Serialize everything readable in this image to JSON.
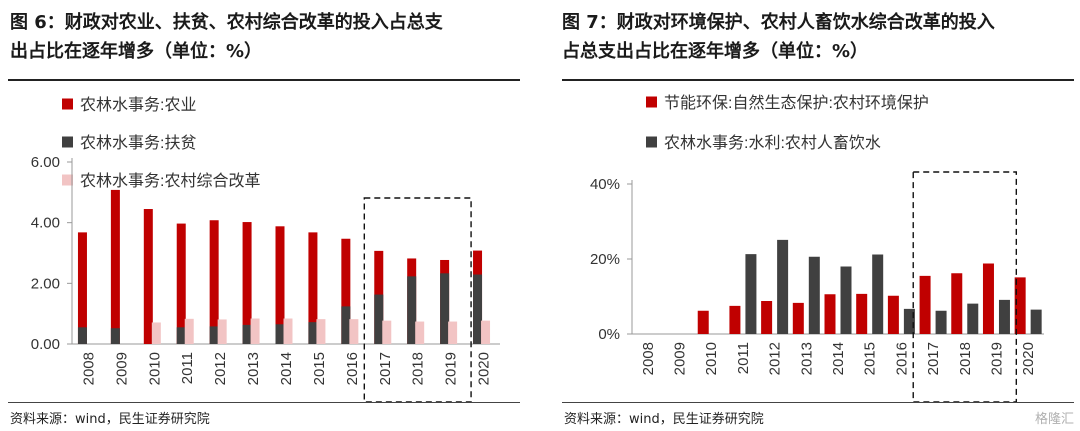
{
  "left": {
    "title_line1": "图 6：财政对农业、扶贫、农村综合改革的投入占总支",
    "title_line2": "出占比在逐年增多（单位：%）",
    "source": "资料来源：wind，民生证券研究院"
  },
  "right": {
    "title_line1": "图 7：财政对环境保护、农村人畜饮水综合改革的投入",
    "title_line2": "占总支出占比在逐年增多（单位：%）",
    "source": "资料来源：wind，民生证券研究院",
    "watermark": "格隆汇"
  },
  "chart_data": [
    {
      "type": "bar",
      "title": "",
      "categories": [
        "2008",
        "2009",
        "2010",
        "2011",
        "2012",
        "2013",
        "2014",
        "2015",
        "2016",
        "2017",
        "2018",
        "2019",
        "2020"
      ],
      "ylim": [
        0,
        6
      ],
      "yticks": [
        "0.00",
        "2.00",
        "4.00",
        "6.00"
      ],
      "grid": false,
      "legend_position": "top-left",
      "highlight_box": [
        "2017",
        "2019"
      ],
      "series": [
        {
          "name": "农林水事务:农业",
          "color": "#c00000",
          "values": [
            3.68,
            5.08,
            4.45,
            3.97,
            4.08,
            4.02,
            3.88,
            3.68,
            3.47,
            3.07,
            2.82,
            2.77,
            3.08
          ]
        },
        {
          "name": "农林水事务:扶贫",
          "color": "#404040",
          "values": [
            0.55,
            0.52,
            null,
            0.55,
            0.58,
            0.63,
            0.65,
            0.72,
            1.24,
            1.63,
            2.23,
            2.33,
            2.29
          ]
        },
        {
          "name": "农林水事务:农村综合改革",
          "color": "#f2c4c4",
          "values": [
            null,
            null,
            0.71,
            0.83,
            0.81,
            0.84,
            0.84,
            0.82,
            0.82,
            0.77,
            0.74,
            0.74,
            0.77
          ]
        }
      ]
    },
    {
      "type": "bar",
      "title": "",
      "categories": [
        "2008",
        "2009",
        "2010",
        "2011",
        "2012",
        "2013",
        "2014",
        "2015",
        "2016",
        "2017",
        "2018",
        "2019",
        "2020"
      ],
      "ylim": [
        0,
        40
      ],
      "yticks": [
        "0%",
        "20%",
        "40%"
      ],
      "grid": false,
      "legend_position": "top-left",
      "highlight_box": [
        "2017",
        "2019"
      ],
      "series": [
        {
          "name": "节能环保:自然生态保护:农村环境保护",
          "color": "#c00000",
          "values": [
            null,
            null,
            6.2,
            7.5,
            8.8,
            8.3,
            10.6,
            10.7,
            10.2,
            15.5,
            16.2,
            18.8,
            15.1
          ]
        },
        {
          "name": "农林水事务:水利:农村人畜饮水",
          "color": "#404040",
          "values": [
            null,
            null,
            null,
            21.3,
            25.1,
            20.6,
            18.0,
            21.2,
            6.7,
            6.2,
            8.1,
            9.1,
            6.5
          ]
        }
      ]
    }
  ]
}
